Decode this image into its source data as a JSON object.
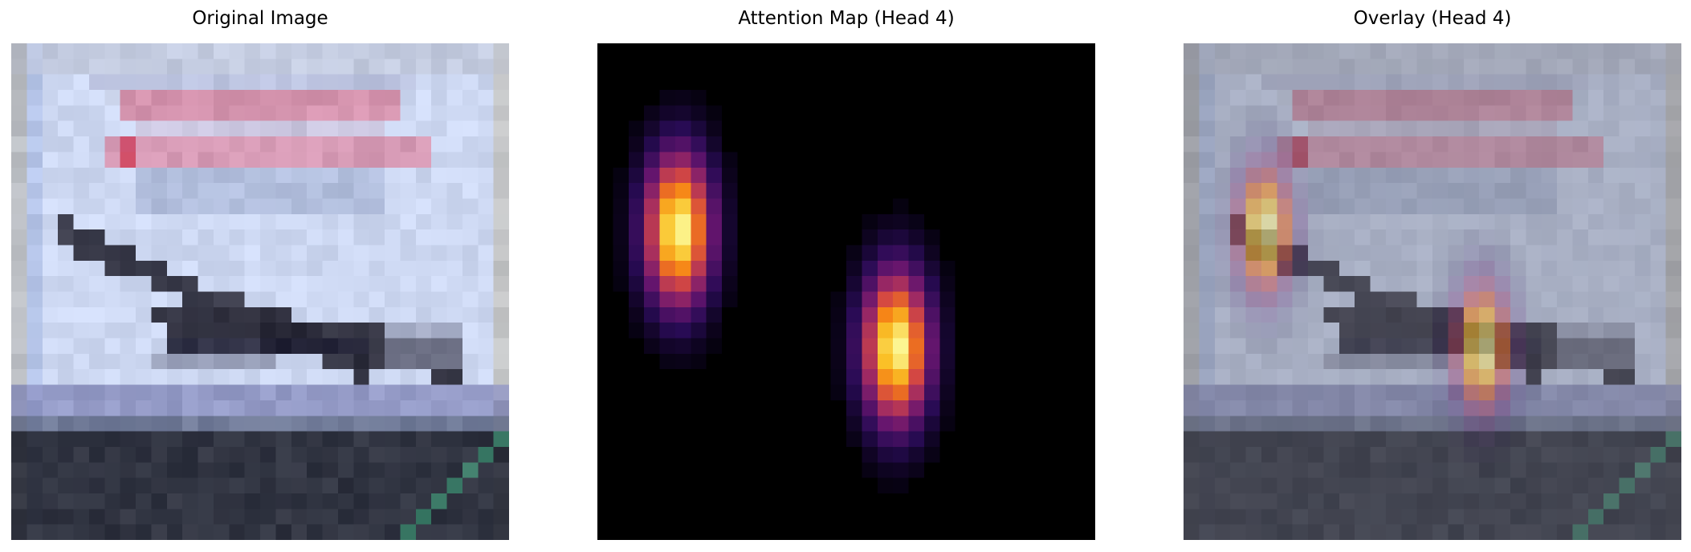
{
  "panels": [
    {
      "title": "Original Image"
    },
    {
      "title": "Attention Map (Head 4)"
    },
    {
      "title": "Overlay (Head 4)"
    }
  ],
  "colors": {
    "sky": "#cdd8f2",
    "banner_pink": "#d97f9a",
    "banner_blue": "#a9b6d6",
    "plane_dark": "#2a2a38",
    "ground_dark": "#232632",
    "stripe_green": "#3d8a6f",
    "attention_bg": "#000000"
  }
}
